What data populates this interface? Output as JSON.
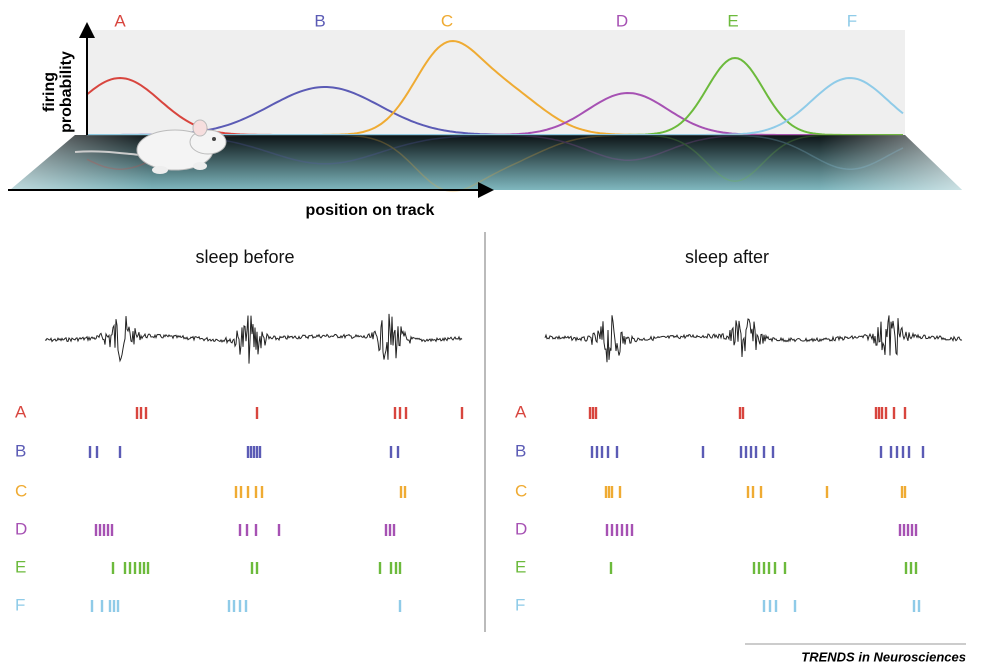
{
  "place_fields": {
    "labels": [
      "A",
      "B",
      "C",
      "D",
      "E",
      "F"
    ]
  },
  "axes": {
    "y_label_lines": [
      "firing",
      "probability"
    ],
    "x_label": "position on track"
  },
  "panels": [
    {
      "title": "sleep before",
      "rows": [
        "A",
        "B",
        "C",
        "D",
        "E",
        "F"
      ]
    },
    {
      "title": "sleep after",
      "rows": [
        "A",
        "B",
        "C",
        "D",
        "E",
        "F"
      ]
    }
  ],
  "footer": {
    "source": "TRENDS in Neurosciences"
  }
}
